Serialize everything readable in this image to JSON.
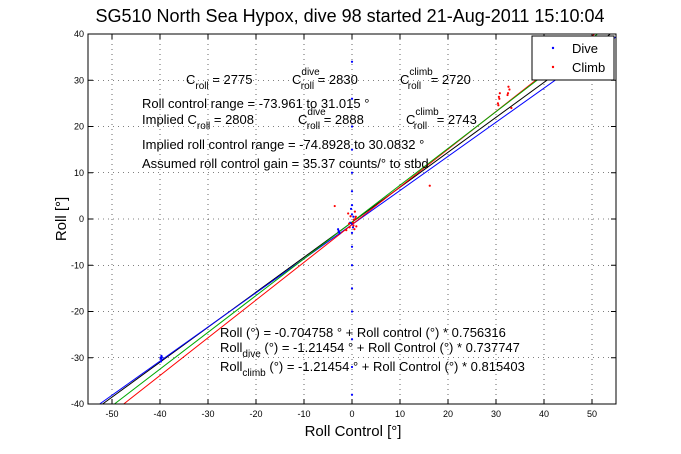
{
  "chart_data": {
    "type": "scatter",
    "title": "SG510 North Sea Hypox, dive 98 started 21-Aug-2011 15:10:04",
    "xlabel": "Roll Control [°]",
    "ylabel": "Roll [°]",
    "xlim": [
      -55,
      55
    ],
    "ylim": [
      -40,
      40
    ],
    "xticks": [
      -50,
      -40,
      -30,
      -20,
      -10,
      0,
      10,
      20,
      30,
      40,
      50
    ],
    "yticks": [
      -40,
      -30,
      -20,
      -10,
      0,
      10,
      20,
      30,
      40
    ],
    "grid": true,
    "legend": {
      "position": "top-right",
      "entries": [
        {
          "label": "Dive",
          "color": "#0000ff"
        },
        {
          "label": "Climb",
          "color": "#ff0000"
        }
      ]
    },
    "series": [
      {
        "name": "Dive",
        "color": "#0000ff",
        "points": [
          [
            -39.8,
            -30.2
          ],
          [
            -39.7,
            -29.6
          ],
          [
            -39.8,
            -30.8
          ],
          [
            -39.9,
            -30.0
          ],
          [
            -39.6,
            -29.9
          ],
          [
            -2.8,
            -2.6
          ],
          [
            -2.6,
            -3.1
          ],
          [
            -2.9,
            -2.2
          ],
          [
            -2.7,
            -2.8
          ],
          [
            0.0,
            34.0
          ],
          [
            0.0,
            26.0
          ],
          [
            0.0,
            20.0
          ],
          [
            0.0,
            15.0
          ],
          [
            0.0,
            10.0
          ],
          [
            0.0,
            6.0
          ],
          [
            0.0,
            3.0
          ],
          [
            0.0,
            1.0
          ],
          [
            0.0,
            -1.0
          ],
          [
            0.0,
            -3.0
          ],
          [
            0.0,
            -6.0
          ],
          [
            0.0,
            -10.0
          ],
          [
            0.0,
            -15.0
          ],
          [
            0.0,
            -20.0
          ],
          [
            0.0,
            -26.0
          ],
          [
            0.0,
            -32.0
          ],
          [
            0.0,
            -38.0
          ],
          [
            -0.4,
            -0.8
          ],
          [
            0.3,
            0.5
          ],
          [
            0.2,
            -1.8
          ],
          [
            -0.2,
            2.2
          ]
        ]
      },
      {
        "name": "Climb",
        "color": "#ff0000",
        "points": [
          [
            30.6,
            26.4
          ],
          [
            30.4,
            25.0
          ],
          [
            30.8,
            27.2
          ],
          [
            30.5,
            24.6
          ],
          [
            30.7,
            26.0
          ],
          [
            32.5,
            27.2
          ],
          [
            32.6,
            28.6
          ],
          [
            32.4,
            26.8
          ],
          [
            32.8,
            28.0
          ],
          [
            33.2,
            24.0
          ],
          [
            16.2,
            7.2
          ],
          [
            -3.6,
            2.8
          ],
          [
            -1.2,
            -2.4
          ],
          [
            -0.6,
            -1.0
          ],
          [
            0.4,
            -0.2
          ],
          [
            0.8,
            0.5
          ],
          [
            0.5,
            -2.2
          ],
          [
            0.6,
            1.6
          ],
          [
            0.2,
            -0.8
          ],
          [
            -0.3,
            0.6
          ],
          [
            0.9,
            -1.6
          ],
          [
            -0.8,
            1.2
          ],
          [
            0.7,
            0.1
          ],
          [
            0.3,
            -1.4
          ],
          [
            -0.5,
            -1.8
          ]
        ]
      }
    ],
    "fit_lines": [
      {
        "name": "Roll (°) = -0.704758 ° + Roll control (°) * 0.756316",
        "intercept": -0.704758,
        "slope": 0.756316,
        "color": "#000000"
      },
      {
        "name": "Roll dive (°) = -1.21454 ° + Roll Control (°) * 0.737747",
        "intercept": -1.21454,
        "slope": 0.737747,
        "color": "#0000ff"
      },
      {
        "name": "Roll climb (°) = -1.21454 ° + Roll Control (°) * 0.815403",
        "intercept": -1.21454,
        "slope": 0.815403,
        "color": "#ff0000"
      },
      {
        "name": "implied",
        "intercept": -0.65,
        "slope": 0.795,
        "color": "#00aa00"
      }
    ],
    "annotations": {
      "c_roll": {
        "c": "C",
        "sub": "roll",
        "value": " = 2775"
      },
      "c_roll_dive": {
        "c": "C",
        "sup": "dive",
        "sub": "roll",
        "value": " = 2830"
      },
      "c_roll_climb": {
        "c": "C",
        "sup": "climb",
        "sub": "roll",
        "value": " = 2720"
      },
      "roll_control_range": "Roll control range = -73.961 to 31.015 °",
      "implied_prefix": "Implied C",
      "implied_c_roll": {
        "sub": "roll",
        "value": " = 2808"
      },
      "implied_c_roll_dive": {
        "c": "C",
        "sup": "dive",
        "sub": "roll",
        "value": " = 2888"
      },
      "implied_c_roll_climb": {
        "c": "C",
        "sup": "climb",
        "sub": "roll",
        "value": " = 2743"
      },
      "implied_range": "Implied roll control range = -74.8928 to 30.0832 °",
      "gain": "Assumed roll control gain = 35.37 counts/° to stbd",
      "eq1": "Roll (°) = -0.704758 ° + Roll control (°) * 0.756316",
      "eq2_main": "Roll",
      "eq2_sub": "dive",
      "eq2_rest": " (°) = -1.21454 ° + Roll Control (°) * 0.737747",
      "eq3_main": "Roll",
      "eq3_sub": "climb",
      "eq3_rest": " (°) = -1.21454 ° + Roll Control (°) * 0.815403"
    }
  }
}
